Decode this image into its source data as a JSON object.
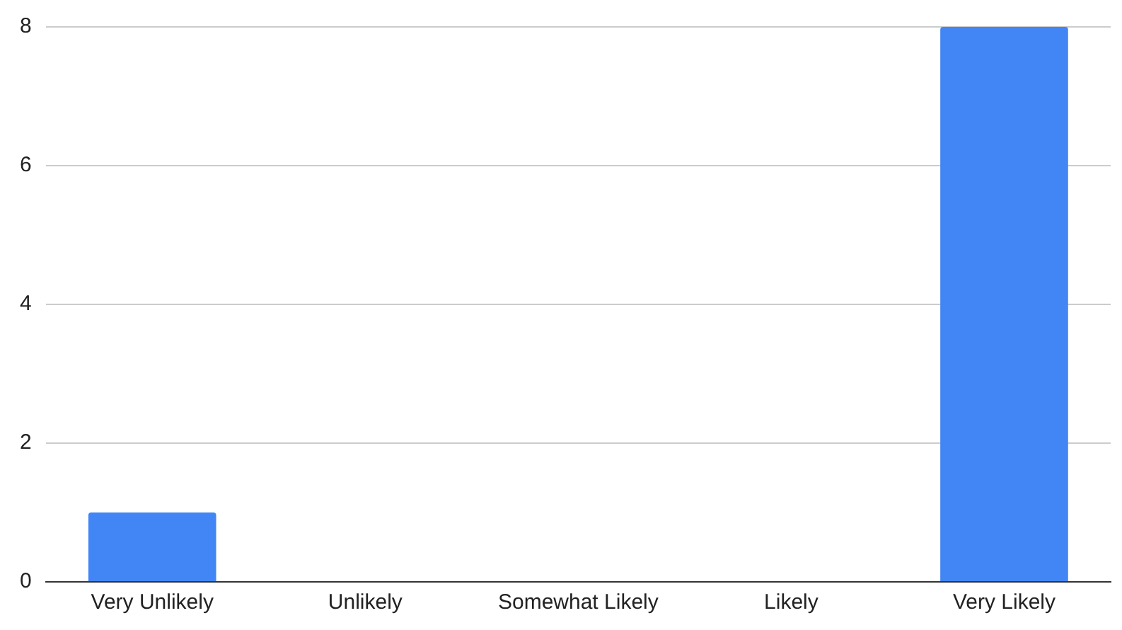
{
  "chart_data": {
    "type": "bar",
    "categories": [
      "Very Unlikely",
      "Unlikely",
      "Somewhat Likely",
      "Likely",
      "Very Likely"
    ],
    "values": [
      1,
      0,
      0,
      0,
      8
    ],
    "color": "#4285f4",
    "ylim": [
      0,
      8
    ],
    "yticks": [
      0,
      2,
      4,
      6,
      8
    ],
    "grid": "y",
    "legend": false
  }
}
